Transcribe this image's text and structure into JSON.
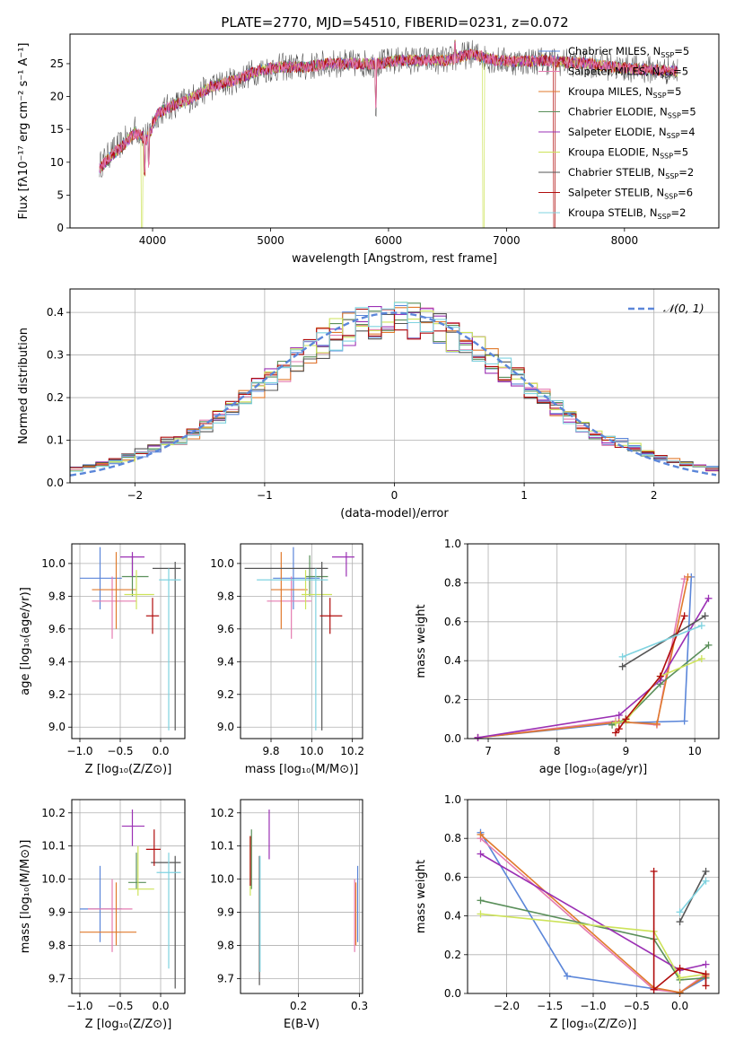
{
  "title": "PLATE=2770, MJD=54510, FIBERID=0231, z=0.072",
  "colors": {
    "chabrier_miles": "#5b86d9",
    "salpeter_miles": "#e57bb0",
    "kroupa_miles": "#e07a2c",
    "chabrier_elodie": "#5a8f5a",
    "salpeter_elodie": "#9b30b4",
    "kroupa_elodie": "#cde35a",
    "chabrier_stelib": "#555555",
    "salpeter_stelib": "#b00c0c",
    "kroupa_stelib": "#7fd3e0",
    "normal_curve": "#5b86d9",
    "grid": "#b0b0b0"
  },
  "chart_data": [
    {
      "type": "line",
      "panel": "spectrum",
      "xlabel": "wavelength [Angstrom, rest frame]",
      "ylabel": "Flux [fλ10⁻¹⁷ erg cm⁻² s⁻¹ A⁻¹]",
      "xlim": [
        3300,
        8800
      ],
      "ylim": [
        0,
        29.5
      ],
      "xticks": [
        4000,
        5000,
        6000,
        7000,
        8000
      ],
      "yticks": [
        0,
        5,
        10,
        15,
        20,
        25
      ],
      "grid": false,
      "legend_position": "right",
      "series": [
        {
          "name": "Chabrier MILES, N_SSP=5"
        },
        {
          "name": "Salpeter MILES, N_SSP=5"
        },
        {
          "name": "Kroupa MILES, N_SSP=5"
        },
        {
          "name": "Chabrier ELODIE, N_SSP=5"
        },
        {
          "name": "Salpeter ELODIE, N_SSP=4"
        },
        {
          "name": "Kroupa ELODIE, N_SSP=5"
        },
        {
          "name": "Chabrier STELIB, N_SSP=2"
        },
        {
          "name": "Salpeter STELIB, N_SSP=6"
        },
        {
          "name": "Kroupa STELIB, N_SSP=2"
        }
      ],
      "envelope": {
        "x": [
          3550,
          3650,
          3750,
          3850,
          3950,
          4050,
          4150,
          4300,
          4500,
          4700,
          4900,
          5100,
          5300,
          5500,
          5700,
          5900,
          6100,
          6300,
          6500,
          6700,
          6900,
          7100,
          7300,
          7500,
          7700,
          7900,
          8100,
          8300,
          8450
        ],
        "y": [
          9.5,
          11.5,
          13,
          15,
          14,
          17.5,
          18.5,
          19.5,
          21.5,
          22.5,
          24,
          24.5,
          24.5,
          25,
          25,
          25,
          25.5,
          25.5,
          25.5,
          26.5,
          25.5,
          25.3,
          25.5,
          25.2,
          25,
          24.5,
          24.2,
          24,
          23.8
        ]
      }
    },
    {
      "type": "line",
      "panel": "residual-distribution",
      "xlabel": "(data-model)/error",
      "ylabel": "Normed distribution",
      "xlim": [
        -2.5,
        2.5
      ],
      "ylim": [
        0,
        0.455
      ],
      "xticks": [
        -2,
        -1,
        0,
        1,
        2
      ],
      "yticks": [
        0.0,
        0.1,
        0.2,
        0.3,
        0.4
      ],
      "grid": true,
      "legend": [
        {
          "name": "𝒩(0, 1)"
        }
      ],
      "legend_position": "top-right",
      "normal_curve": {
        "mean": 0,
        "sigma": 1
      }
    },
    {
      "type": "scatter",
      "panel": "age-vs-Z",
      "xlabel": "Z [log₁₀(Z/Z⊙)]",
      "ylabel": "age  [log₁₀(age/yr)]",
      "xlim": [
        -1.1,
        0.3
      ],
      "ylim": [
        8.93,
        10.12
      ],
      "xticks": [
        -1.0,
        -0.5,
        0.0
      ],
      "yticks": [
        9.0,
        9.2,
        9.4,
        9.6,
        9.8,
        10.0
      ],
      "grid": true,
      "points": [
        {
          "c": "chabrier_miles",
          "x": -0.75,
          "y": 9.91,
          "xe": [
            -1.0,
            -0.48
          ],
          "ye": [
            9.72,
            10.1
          ]
        },
        {
          "c": "salpeter_miles",
          "x": -0.6,
          "y": 9.77,
          "xe": [
            -0.85,
            -0.3
          ],
          "ye": [
            9.54,
            9.92
          ]
        },
        {
          "c": "kroupa_miles",
          "x": -0.55,
          "y": 9.84,
          "xe": [
            -0.85,
            -0.3
          ],
          "ye": [
            9.6,
            10.07
          ]
        },
        {
          "c": "chabrier_elodie",
          "x": -0.35,
          "y": 9.92,
          "xe": [
            -0.48,
            -0.15
          ],
          "ye": [
            9.8,
            10.05
          ]
        },
        {
          "c": "salpeter_elodie",
          "x": -0.35,
          "y": 10.04,
          "xe": [
            -0.5,
            -0.2
          ],
          "ye": [
            9.92,
            10.07
          ]
        },
        {
          "c": "kroupa_elodie",
          "x": -0.3,
          "y": 9.81,
          "xe": [
            -0.45,
            -0.08
          ],
          "ye": [
            9.72,
            9.96
          ]
        },
        {
          "c": "chabrier_stelib",
          "x": 0.18,
          "y": 9.97,
          "xe": [
            -0.1,
            0.25
          ],
          "ye": [
            8.98,
            10.01
          ]
        },
        {
          "c": "salpeter_stelib",
          "x": -0.1,
          "y": 9.68,
          "xe": [
            -0.18,
            -0.02
          ],
          "ye": [
            9.57,
            9.79
          ]
        },
        {
          "c": "kroupa_stelib",
          "x": 0.1,
          "y": 9.9,
          "xe": [
            -0.02,
            0.25
          ],
          "ye": [
            8.98,
            9.97
          ]
        }
      ]
    },
    {
      "type": "scatter",
      "panel": "age-vs-mass",
      "xlabel": "mass [log₁₀(M/M⊙)]",
      "ylabel": "",
      "xlim": [
        9.65,
        10.25
      ],
      "ylim": [
        8.93,
        10.12
      ],
      "xticks": [
        9.8,
        10.0,
        10.2
      ],
      "yticks": [
        9.0,
        9.2,
        9.4,
        9.6,
        9.8,
        10.0
      ],
      "grid": true,
      "points": [
        {
          "c": "chabrier_miles",
          "x": 9.91,
          "y": 9.91,
          "xe": [
            9.81,
            10.04
          ],
          "ye": [
            9.72,
            10.1
          ]
        },
        {
          "c": "salpeter_miles",
          "x": 9.9,
          "y": 9.77,
          "xe": [
            9.78,
            10.0
          ],
          "ye": [
            9.54,
            9.92
          ]
        },
        {
          "c": "kroupa_miles",
          "x": 9.85,
          "y": 9.84,
          "xe": [
            9.8,
            9.98
          ],
          "ye": [
            9.6,
            10.07
          ]
        },
        {
          "c": "chabrier_elodie",
          "x": 9.99,
          "y": 9.92,
          "xe": [
            9.97,
            10.08
          ],
          "ye": [
            9.8,
            10.05
          ]
        },
        {
          "c": "salpeter_elodie",
          "x": 10.17,
          "y": 10.04,
          "xe": [
            10.1,
            10.21
          ],
          "ye": [
            9.92,
            10.07
          ]
        },
        {
          "c": "kroupa_elodie",
          "x": 9.97,
          "y": 9.81,
          "xe": [
            9.95,
            10.1
          ],
          "ye": [
            9.72,
            9.96
          ]
        },
        {
          "c": "chabrier_stelib",
          "x": 10.05,
          "y": 9.97,
          "xe": [
            9.67,
            10.08
          ],
          "ye": [
            8.98,
            10.01
          ]
        },
        {
          "c": "salpeter_stelib",
          "x": 10.09,
          "y": 9.68,
          "xe": [
            10.04,
            10.15
          ],
          "ye": [
            9.57,
            9.79
          ]
        },
        {
          "c": "kroupa_stelib",
          "x": 10.02,
          "y": 9.9,
          "xe": [
            9.73,
            10.08
          ],
          "ye": [
            8.98,
            9.97
          ]
        }
      ]
    },
    {
      "type": "line",
      "panel": "mass-weight-vs-age",
      "xlabel": "age  [log₁₀(age/yr)]",
      "ylabel": "mass weight",
      "xlim": [
        6.7,
        10.35
      ],
      "ylim": [
        0,
        1.0
      ],
      "xticks": [
        7,
        8,
        9,
        10
      ],
      "yticks": [
        0.0,
        0.2,
        0.4,
        0.6,
        0.8,
        1.0
      ],
      "grid": true,
      "series": [
        {
          "c": "chabrier_miles",
          "x": [
            6.85,
            8.9,
            9.85,
            9.95
          ],
          "y": [
            0.005,
            0.08,
            0.09,
            0.83
          ]
        },
        {
          "c": "salpeter_miles",
          "x": [
            6.85,
            8.85,
            9.45,
            9.85
          ],
          "y": [
            0.005,
            0.09,
            0.07,
            0.82
          ]
        },
        {
          "c": "kroupa_miles",
          "x": [
            6.85,
            8.9,
            9.45,
            9.9
          ],
          "y": [
            0.005,
            0.085,
            0.075,
            0.83
          ]
        },
        {
          "c": "chabrier_elodie",
          "x": [
            8.8,
            9.0,
            9.5,
            10.2
          ],
          "y": [
            0.07,
            0.1,
            0.28,
            0.48
          ]
        },
        {
          "c": "salpeter_elodie",
          "x": [
            6.85,
            8.9,
            9.5,
            10.2
          ],
          "y": [
            0.005,
            0.12,
            0.3,
            0.72
          ]
        },
        {
          "c": "kroupa_elodie",
          "x": [
            8.85,
            9.0,
            9.5,
            10.1
          ],
          "y": [
            0.08,
            0.09,
            0.32,
            0.41
          ]
        },
        {
          "c": "chabrier_stelib",
          "x": [
            8.95,
            10.15
          ],
          "y": [
            0.37,
            0.63
          ]
        },
        {
          "c": "salpeter_stelib",
          "x": [
            8.85,
            8.9,
            9.0,
            9.5,
            9.85
          ],
          "y": [
            0.03,
            0.05,
            0.1,
            0.32,
            0.63
          ]
        },
        {
          "c": "kroupa_stelib",
          "x": [
            8.95,
            10.1
          ],
          "y": [
            0.42,
            0.58
          ]
        }
      ]
    },
    {
      "type": "scatter",
      "panel": "mass-vs-Z",
      "xlabel": "Z [log₁₀(Z/Z⊙)]",
      "ylabel": "mass [log₁₀(M/M⊙)]",
      "xlim": [
        -1.1,
        0.3
      ],
      "ylim": [
        9.655,
        10.24
      ],
      "xticks": [
        -1.0,
        -0.5,
        0.0
      ],
      "yticks": [
        9.7,
        9.8,
        9.9,
        10.0,
        10.1,
        10.2
      ],
      "grid": true,
      "points": [
        {
          "c": "chabrier_miles",
          "x": -0.75,
          "y": 9.91,
          "xe": [
            -1.0,
            -0.48
          ],
          "ye": [
            9.81,
            10.04
          ]
        },
        {
          "c": "salpeter_miles",
          "x": -0.6,
          "y": 9.91,
          "xe": [
            -0.9,
            -0.35
          ],
          "ye": [
            9.78,
            10.0
          ]
        },
        {
          "c": "kroupa_miles",
          "x": -0.55,
          "y": 9.84,
          "xe": [
            -1.0,
            -0.3
          ],
          "ye": [
            9.8,
            9.99
          ]
        },
        {
          "c": "chabrier_elodie",
          "x": -0.3,
          "y": 9.99,
          "xe": [
            -0.4,
            -0.18
          ],
          "ye": [
            9.97,
            10.08
          ]
        },
        {
          "c": "salpeter_elodie",
          "x": -0.35,
          "y": 10.16,
          "xe": [
            -0.48,
            -0.2
          ],
          "ye": [
            10.1,
            10.21
          ]
        },
        {
          "c": "kroupa_elodie",
          "x": -0.28,
          "y": 9.97,
          "xe": [
            -0.4,
            -0.08
          ],
          "ye": [
            9.95,
            10.1
          ]
        },
        {
          "c": "chabrier_stelib",
          "x": 0.18,
          "y": 10.05,
          "xe": [
            -0.12,
            0.25
          ],
          "ye": [
            9.67,
            10.07
          ]
        },
        {
          "c": "salpeter_stelib",
          "x": -0.08,
          "y": 10.09,
          "xe": [
            -0.18,
            0.0
          ],
          "ye": [
            10.04,
            10.15
          ]
        },
        {
          "c": "kroupa_stelib",
          "x": 0.1,
          "y": 10.02,
          "xe": [
            -0.05,
            0.25
          ],
          "ye": [
            9.73,
            10.08
          ]
        }
      ]
    },
    {
      "type": "scatter",
      "panel": "mass-vs-EBV",
      "xlabel": "E(B-V)",
      "ylabel": "",
      "xlim": [
        0.105,
        0.305
      ],
      "ylim": [
        9.655,
        10.24
      ],
      "xticks": [
        0.2,
        0.3
      ],
      "yticks": [
        9.7,
        9.8,
        9.9,
        10.0,
        10.1,
        10.2
      ],
      "grid": true,
      "points": [
        {
          "c": "chabrier_miles",
          "x": 0.297,
          "y": 9.91,
          "ye": [
            9.81,
            10.04
          ]
        },
        {
          "c": "salpeter_miles",
          "x": 0.292,
          "y": 9.9,
          "ye": [
            9.78,
            10.0
          ]
        },
        {
          "c": "kroupa_miles",
          "x": 0.294,
          "y": 9.88,
          "ye": [
            9.8,
            9.99
          ]
        },
        {
          "c": "chabrier_elodie",
          "x": 0.123,
          "y": 10.05,
          "ye": [
            9.97,
            10.15
          ]
        },
        {
          "c": "salpeter_elodie",
          "x": 0.152,
          "y": 10.13,
          "ye": [
            10.06,
            10.21
          ]
        },
        {
          "c": "kroupa_elodie",
          "x": 0.121,
          "y": 10.03,
          "ye": [
            9.95,
            10.13
          ]
        },
        {
          "c": "chabrier_stelib",
          "x": 0.136,
          "y": 9.9,
          "ye": [
            9.68,
            10.07
          ]
        },
        {
          "c": "salpeter_stelib",
          "x": 0.121,
          "y": 10.07,
          "ye": [
            9.98,
            10.13
          ]
        },
        {
          "c": "kroupa_stelib",
          "x": 0.137,
          "y": 9.9,
          "ye": [
            9.72,
            10.07
          ]
        }
      ]
    },
    {
      "type": "line",
      "panel": "mass-weight-vs-Z",
      "xlabel": "Z [log₁₀(Z/Z⊙)]",
      "ylabel": "mass weight",
      "xlim": [
        -2.45,
        0.45
      ],
      "ylim": [
        0,
        1.0
      ],
      "xticks": [
        -2.0,
        -1.5,
        -1.0,
        -0.5,
        0.0
      ],
      "yticks": [
        0.0,
        0.2,
        0.4,
        0.6,
        0.8,
        1.0
      ],
      "grid": true,
      "series": [
        {
          "c": "chabrier_miles",
          "x": [
            -2.3,
            -1.3,
            0.0,
            0.3
          ],
          "y": [
            0.83,
            0.09,
            0.005,
            0.08
          ]
        },
        {
          "c": "salpeter_miles",
          "x": [
            -2.3,
            -0.3,
            0.0,
            0.3
          ],
          "y": [
            0.8,
            0.02,
            0.005,
            0.1
          ]
        },
        {
          "c": "kroupa_miles",
          "x": [
            -2.3,
            -0.3,
            0.0,
            0.3
          ],
          "y": [
            0.82,
            0.03,
            0.005,
            0.09
          ]
        },
        {
          "c": "chabrier_elodie",
          "x": [
            -2.3,
            -0.3,
            0.0,
            0.3
          ],
          "y": [
            0.48,
            0.28,
            0.07,
            0.08
          ]
        },
        {
          "c": "salpeter_elodie",
          "x": [
            -2.3,
            0.0,
            0.3
          ],
          "y": [
            0.72,
            0.12,
            0.15
          ]
        },
        {
          "c": "kroupa_elodie",
          "x": [
            -2.3,
            -0.3,
            0.0,
            0.3
          ],
          "y": [
            0.41,
            0.32,
            0.08,
            0.1
          ]
        },
        {
          "c": "chabrier_stelib",
          "x": [
            0.0,
            0.3
          ],
          "y": [
            0.37,
            0.63
          ]
        },
        {
          "c": "salpeter_stelib",
          "x": [
            -0.3,
            -0.3,
            0.0,
            0.3,
            0.3
          ],
          "y": [
            0.63,
            0.02,
            0.13,
            0.1,
            0.04
          ]
        },
        {
          "c": "kroupa_stelib",
          "x": [
            0.0,
            0.3
          ],
          "y": [
            0.42,
            0.58
          ]
        }
      ]
    }
  ]
}
